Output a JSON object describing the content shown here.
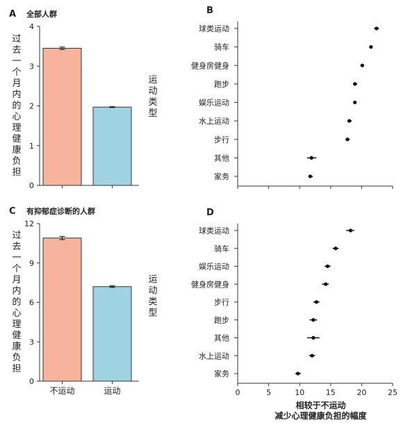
{
  "chart_data": [
    {
      "panel": "A",
      "type": "bar",
      "title": "全部人群",
      "ylabel": "过去一个月内的心理健康负担",
      "ylim": [
        0,
        4
      ],
      "yticks": [
        0,
        1,
        2,
        3,
        4
      ],
      "categories": [
        "不运动",
        "运动"
      ],
      "values": [
        3.45,
        1.97
      ],
      "errors": [
        0.03,
        0.01
      ],
      "colors": [
        "#f7b39c",
        "#9fd3e2"
      ]
    },
    {
      "panel": "B",
      "type": "scatter",
      "ylabel": "运动类型",
      "xlim": [
        0,
        25
      ],
      "xticks": [
        0,
        5,
        10,
        15,
        20,
        25
      ],
      "show_tick_labels": false,
      "categories": [
        "球类运动",
        "骑车",
        "健身房健身",
        "跑步",
        "娱乐运动",
        "水上运动",
        "步行",
        "其他",
        "家务"
      ],
      "values": [
        22.4,
        21.5,
        20.1,
        18.9,
        18.9,
        18.0,
        17.7,
        11.9,
        11.7
      ],
      "ci_low": [
        22.0,
        21.2,
        19.8,
        18.6,
        18.6,
        17.7,
        17.4,
        11.2,
        11.4
      ],
      "ci_high": [
        22.8,
        21.8,
        20.4,
        19.3,
        19.2,
        18.4,
        18.1,
        12.7,
        12.1
      ]
    },
    {
      "panel": "C",
      "type": "bar",
      "title": "有抑郁症诊断的人群",
      "ylabel": "过去一个月内的心理健康负担",
      "ylim": [
        0,
        12
      ],
      "yticks": [
        0,
        3,
        6,
        9,
        12
      ],
      "categories": [
        "不运动",
        "运动"
      ],
      "values": [
        10.9,
        7.2
      ],
      "errors": [
        0.12,
        0.06
      ],
      "colors": [
        "#f7b39c",
        "#9fd3e2"
      ]
    },
    {
      "panel": "D",
      "type": "scatter",
      "ylabel": "运动类型",
      "xlabel": [
        "相较于不运动",
        "减少心理健康负担的幅度"
      ],
      "xlim": [
        0,
        25
      ],
      "xticks": [
        0,
        5,
        10,
        15,
        20,
        25
      ],
      "show_tick_labels": true,
      "categories": [
        "球类运动",
        "骑车",
        "娱乐运动",
        "健身房健身",
        "步行",
        "跑步",
        "其他",
        "水上运动",
        "家务"
      ],
      "values": [
        18.2,
        15.8,
        14.5,
        14.2,
        12.7,
        12.2,
        12.2,
        12.0,
        9.7
      ],
      "ci_low": [
        17.5,
        15.3,
        14.0,
        13.6,
        12.2,
        11.6,
        11.2,
        11.5,
        9.3
      ],
      "ci_high": [
        18.8,
        16.3,
        15.0,
        14.7,
        13.2,
        12.8,
        13.2,
        12.5,
        10.2
      ]
    }
  ]
}
